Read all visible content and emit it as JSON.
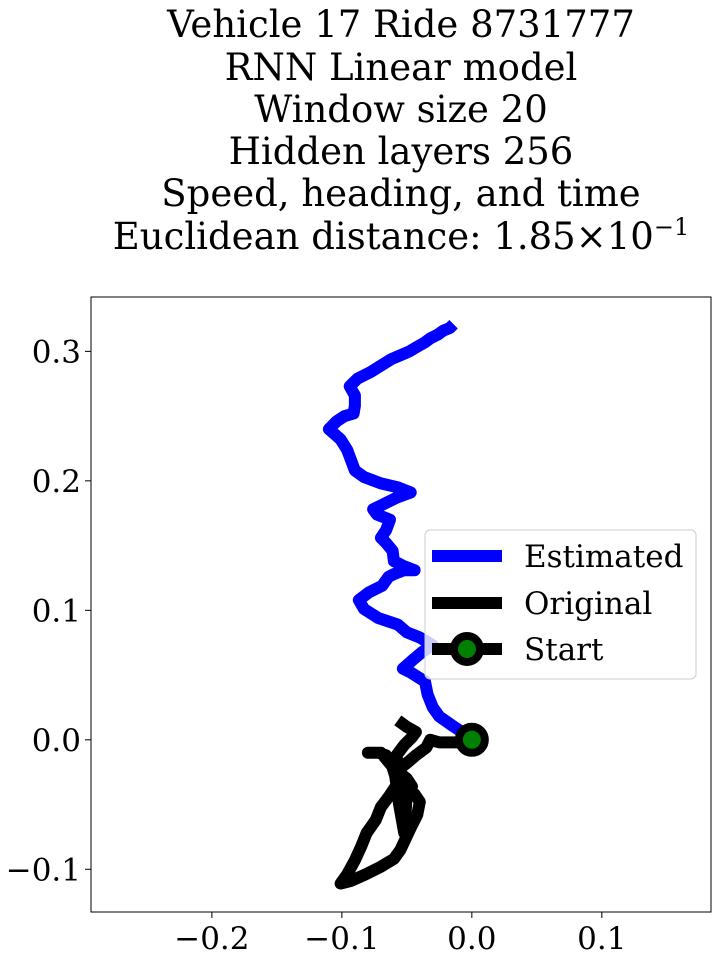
{
  "chart_data": {
    "type": "line",
    "title_lines": [
      "Vehicle 17 Ride 8731777",
      "RNN Linear model",
      "Window size 20",
      "Hidden layers 256",
      "Speed, heading, and time"
    ],
    "title_math": {
      "prefix": "Euclidean distance: ",
      "mantissa": "1.85",
      "times": "×",
      "base": "10",
      "exponent": "−1"
    },
    "xlim": [
      -0.293,
      0.184
    ],
    "ylim": [
      -0.133,
      0.342
    ],
    "xticks": [
      {
        "value": -0.2,
        "label": "−0.2"
      },
      {
        "value": -0.1,
        "label": "−0.1"
      },
      {
        "value": 0.0,
        "label": "0.0"
      },
      {
        "value": 0.1,
        "label": "0.1"
      }
    ],
    "yticks": [
      {
        "value": -0.1,
        "label": "−0.1"
      },
      {
        "value": 0.0,
        "label": "0.0"
      },
      {
        "value": 0.1,
        "label": "0.1"
      },
      {
        "value": 0.2,
        "label": "0.2"
      },
      {
        "value": 0.3,
        "label": "0.3"
      }
    ],
    "grid": false,
    "legend_position": "center-right",
    "series": [
      {
        "name": "Estimated",
        "color": "#0000ff",
        "points": [
          [
            0.0,
            0.0
          ],
          [
            -0.006,
            0.005
          ],
          [
            -0.015,
            0.011
          ],
          [
            -0.025,
            0.018
          ],
          [
            -0.03,
            0.025
          ],
          [
            -0.034,
            0.035
          ],
          [
            -0.036,
            0.045
          ],
          [
            -0.047,
            0.052
          ],
          [
            -0.053,
            0.055
          ],
          [
            -0.045,
            0.062
          ],
          [
            -0.038,
            0.068
          ],
          [
            -0.03,
            0.073
          ],
          [
            -0.04,
            0.079
          ],
          [
            -0.05,
            0.083
          ],
          [
            -0.057,
            0.089
          ],
          [
            -0.072,
            0.094
          ],
          [
            -0.083,
            0.101
          ],
          [
            -0.087,
            0.108
          ],
          [
            -0.079,
            0.114
          ],
          [
            -0.069,
            0.119
          ],
          [
            -0.064,
            0.126
          ],
          [
            -0.06,
            0.128
          ],
          [
            -0.052,
            0.131
          ],
          [
            -0.044,
            0.131
          ],
          [
            -0.052,
            0.134
          ],
          [
            -0.06,
            0.138
          ],
          [
            -0.061,
            0.146
          ],
          [
            -0.066,
            0.152
          ],
          [
            -0.07,
            0.156
          ],
          [
            -0.066,
            0.162
          ],
          [
            -0.063,
            0.17
          ],
          [
            -0.073,
            0.174
          ],
          [
            -0.076,
            0.178
          ],
          [
            -0.066,
            0.183
          ],
          [
            -0.058,
            0.187
          ],
          [
            -0.047,
            0.191
          ],
          [
            -0.057,
            0.195
          ],
          [
            -0.07,
            0.198
          ],
          [
            -0.083,
            0.203
          ],
          [
            -0.09,
            0.208
          ],
          [
            -0.093,
            0.216
          ],
          [
            -0.096,
            0.224
          ],
          [
            -0.101,
            0.232
          ],
          [
            -0.11,
            0.24
          ],
          [
            -0.104,
            0.246
          ],
          [
            -0.098,
            0.25
          ],
          [
            -0.091,
            0.252
          ],
          [
            -0.09,
            0.258
          ],
          [
            -0.09,
            0.266
          ],
          [
            -0.094,
            0.273
          ],
          [
            -0.088,
            0.279
          ],
          [
            -0.078,
            0.284
          ],
          [
            -0.07,
            0.289
          ],
          [
            -0.062,
            0.294
          ],
          [
            -0.055,
            0.297
          ],
          [
            -0.048,
            0.3
          ],
          [
            -0.043,
            0.303
          ],
          [
            -0.036,
            0.307
          ],
          [
            -0.032,
            0.31
          ],
          [
            -0.026,
            0.313
          ],
          [
            -0.022,
            0.316
          ],
          [
            -0.017,
            0.318
          ],
          [
            -0.014,
            0.321
          ]
        ]
      },
      {
        "name": "Original",
        "color": "#000000",
        "points": [
          [
            0.0,
            0.0
          ],
          [
            -0.01,
            -0.002
          ],
          [
            -0.025,
            -0.002
          ],
          [
            -0.032,
            0.0
          ],
          [
            -0.035,
            -0.006
          ],
          [
            -0.043,
            -0.012
          ],
          [
            -0.05,
            -0.018
          ],
          [
            -0.058,
            -0.024
          ],
          [
            -0.052,
            -0.034
          ],
          [
            -0.044,
            -0.042
          ],
          [
            -0.04,
            -0.048
          ],
          [
            -0.042,
            -0.058
          ],
          [
            -0.047,
            -0.068
          ],
          [
            -0.055,
            -0.085
          ],
          [
            -0.06,
            -0.092
          ],
          [
            -0.07,
            -0.098
          ],
          [
            -0.082,
            -0.104
          ],
          [
            -0.093,
            -0.109
          ],
          [
            -0.101,
            -0.111
          ],
          [
            -0.096,
            -0.104
          ],
          [
            -0.09,
            -0.093
          ],
          [
            -0.085,
            -0.082
          ],
          [
            -0.081,
            -0.072
          ],
          [
            -0.074,
            -0.062
          ],
          [
            -0.07,
            -0.052
          ],
          [
            -0.064,
            -0.044
          ],
          [
            -0.058,
            -0.035
          ],
          [
            -0.052,
            -0.03
          ],
          [
            -0.05,
            -0.04
          ],
          [
            -0.051,
            -0.058
          ],
          [
            -0.052,
            -0.072
          ],
          [
            -0.056,
            -0.05
          ],
          [
            -0.059,
            -0.028
          ],
          [
            -0.062,
            -0.018
          ],
          [
            -0.066,
            -0.012
          ],
          [
            -0.072,
            -0.01
          ],
          [
            -0.08,
            -0.01
          ],
          [
            -0.07,
            -0.01
          ],
          [
            -0.065,
            -0.016
          ],
          [
            -0.06,
            -0.022
          ],
          [
            -0.05,
            -0.03
          ],
          [
            -0.046,
            -0.036
          ],
          [
            -0.052,
            -0.032
          ],
          [
            -0.056,
            -0.026
          ],
          [
            -0.058,
            -0.012
          ],
          [
            -0.052,
            -0.004
          ],
          [
            -0.046,
            0.002
          ],
          [
            -0.043,
            0.006
          ],
          [
            -0.05,
            0.01
          ],
          [
            -0.057,
            0.015
          ]
        ]
      },
      {
        "name": "Start",
        "color": "#000000",
        "marker_face_color": "#008000",
        "points": [
          [
            0.0,
            0.0
          ]
        ]
      }
    ]
  }
}
